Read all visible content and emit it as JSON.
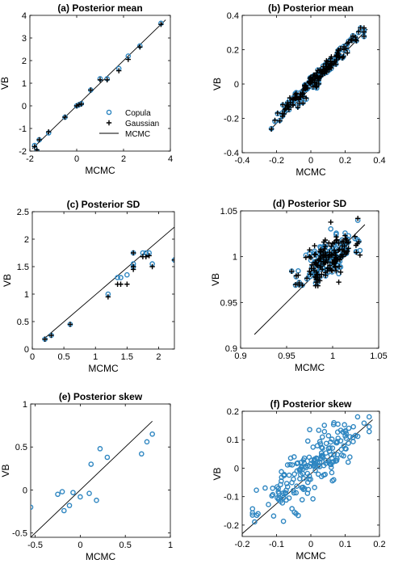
{
  "colors": {
    "copula": "#2e86c1",
    "gaussian": "#000000",
    "line": "#000000",
    "axis": "#000000"
  },
  "legend": {
    "items": [
      "Copula",
      "Gaussian",
      "MCMC"
    ],
    "placement": "inside lower-right of panel (a)"
  },
  "chart_data": [
    {
      "panel": "a",
      "type": "scatter",
      "title": "(a) Posterior mean",
      "xlabel": "MCMC",
      "ylabel": "VB",
      "xlim": [
        -2,
        4
      ],
      "ylim": [
        -2,
        4
      ],
      "xticks": [
        "-2",
        "0",
        "2",
        "4"
      ],
      "yticks": [
        "-2",
        "-1",
        "0",
        "1",
        "2",
        "3",
        "4"
      ],
      "reference_line": {
        "x": [
          -1.9,
          3.8
        ],
        "y": [
          -1.9,
          3.8
        ]
      },
      "series": [
        {
          "name": "Copula",
          "marker": "circle",
          "x": [
            -1.8,
            -1.7,
            -1.6,
            -1.2,
            -0.5,
            0.0,
            0.1,
            0.2,
            0.6,
            1.0,
            1.3,
            1.8,
            2.2,
            2.7,
            3.6
          ],
          "y": [
            -1.75,
            -2.0,
            -1.5,
            -1.2,
            -0.5,
            0.0,
            0.05,
            0.1,
            0.7,
            1.2,
            1.2,
            1.65,
            2.2,
            2.65,
            3.65
          ]
        },
        {
          "name": "Gaussian",
          "marker": "plus",
          "x": [
            -1.8,
            -1.7,
            -1.6,
            -1.2,
            -0.5,
            0.0,
            0.1,
            0.2,
            0.6,
            1.0,
            1.3,
            1.8,
            2.2,
            2.7,
            3.6
          ],
          "y": [
            -1.8,
            -1.95,
            -1.5,
            -1.15,
            -0.5,
            0.0,
            0.05,
            0.08,
            0.7,
            1.15,
            1.15,
            1.55,
            2.05,
            2.6,
            3.6
          ]
        }
      ]
    },
    {
      "panel": "b",
      "type": "scatter",
      "title": "(b) Posterior mean",
      "xlabel": "MCMC",
      "ylabel": "VB",
      "xlim": [
        -0.4,
        0.4
      ],
      "ylim": [
        -0.4,
        0.4
      ],
      "xticks": [
        "-0.4",
        "-0.2",
        "0",
        "0.2",
        "0.4"
      ],
      "yticks": [
        "-0.4",
        "-0.2",
        "0",
        "0.2",
        "0.4"
      ],
      "reference_line": {
        "x": [
          -0.24,
          0.33
        ],
        "y": [
          -0.27,
          0.32
        ]
      },
      "generated": {
        "n": 150,
        "xmin": -0.23,
        "xmax": 0.31,
        "noise": 0.022,
        "slope": 1.0,
        "intercept": 0.0,
        "series": [
          "Copula",
          "Gaussian"
        ],
        "seed": 7
      }
    },
    {
      "panel": "c",
      "type": "scatter",
      "title": "(c) Posterior SD",
      "xlabel": "MCMC",
      "ylabel": "VB",
      "xlim": [
        0,
        2.25
      ],
      "ylim": [
        0,
        2.5
      ],
      "xticks": [
        "0",
        "0.5",
        "1",
        "1.5",
        "2"
      ],
      "yticks": [
        "0",
        "0.5",
        "1",
        "1.5",
        "2",
        "2.5"
      ],
      "reference_line": {
        "x": [
          0.2,
          2.25
        ],
        "y": [
          0.2,
          2.22
        ]
      },
      "series": [
        {
          "name": "Copula",
          "marker": "circle",
          "x": [
            0.2,
            0.3,
            0.6,
            1.2,
            1.35,
            1.4,
            1.5,
            1.6,
            1.6,
            1.6,
            1.75,
            1.8,
            1.85,
            1.9,
            2.25
          ],
          "y": [
            0.18,
            0.25,
            0.45,
            1.0,
            1.3,
            1.3,
            1.35,
            1.5,
            1.55,
            1.75,
            1.75,
            1.75,
            1.75,
            1.55,
            1.62
          ]
        },
        {
          "name": "Gaussian",
          "marker": "plus",
          "x": [
            0.2,
            0.3,
            0.6,
            1.2,
            1.35,
            1.4,
            1.5,
            1.6,
            1.6,
            1.6,
            1.75,
            1.8,
            1.85,
            1.9,
            2.25
          ],
          "y": [
            0.18,
            0.25,
            0.45,
            0.95,
            1.18,
            1.18,
            1.18,
            1.45,
            1.5,
            1.75,
            1.68,
            1.68,
            1.7,
            1.5,
            1.62
          ]
        }
      ]
    },
    {
      "panel": "d",
      "type": "scatter",
      "title": "(d) Posterior SD",
      "xlabel": "MCMC",
      "ylabel": "VB",
      "xlim": [
        0.9,
        1.05
      ],
      "ylim": [
        0.9,
        1.05
      ],
      "xticks": [
        "0.9",
        "0.95",
        "1",
        "1.05"
      ],
      "yticks": [
        "0.9",
        "0.95",
        "1",
        "1.05"
      ],
      "reference_line": {
        "x": [
          0.915,
          1.035
        ],
        "y": [
          0.915,
          1.035
        ]
      },
      "generated": {
        "n": 150,
        "cx": 0.995,
        "cy": 0.998,
        "sx": 0.014,
        "sy": 0.016,
        "series": [
          "Copula",
          "Gaussian"
        ],
        "seed": 11
      }
    },
    {
      "panel": "e",
      "type": "scatter",
      "title": "(e) Posterior skew",
      "xlabel": "MCMC",
      "ylabel": "VB",
      "xlim": [
        -0.55,
        1.0
      ],
      "ylim": [
        -0.55,
        1.0
      ],
      "xticks": [
        "-0.5",
        "0",
        "0.5",
        "1"
      ],
      "yticks": [
        "-0.5",
        "0",
        "0.5",
        "1"
      ],
      "reference_line": {
        "x": [
          -0.55,
          0.8
        ],
        "y": [
          -0.55,
          0.8
        ]
      },
      "series": [
        {
          "name": "Copula",
          "marker": "circle",
          "x": [
            -0.55,
            -0.25,
            -0.2,
            -0.18,
            -0.12,
            -0.08,
            0.0,
            0.1,
            0.12,
            0.18,
            0.22,
            0.3,
            0.68,
            0.74,
            0.8
          ],
          "y": [
            -0.2,
            -0.05,
            -0.02,
            -0.24,
            -0.18,
            -0.03,
            -0.08,
            -0.04,
            0.3,
            -0.12,
            0.48,
            0.38,
            0.42,
            0.56,
            0.65
          ]
        }
      ]
    },
    {
      "panel": "f",
      "type": "scatter",
      "title": "(f) Posterior skew",
      "xlabel": "MCMC",
      "ylabel": "VB",
      "xlim": [
        -0.2,
        0.2
      ],
      "ylim": [
        -0.24,
        0.2
      ],
      "xticks": [
        "-0.2",
        "-0.1",
        "0",
        "0.1",
        "0.2"
      ],
      "yticks": [
        "-0.2",
        "-0.1",
        "0",
        "0.1",
        "0.2"
      ],
      "reference_line": {
        "x": [
          -0.2,
          0.18
        ],
        "y": [
          -0.23,
          0.17
        ]
      },
      "generated": {
        "n": 200,
        "xmin": -0.17,
        "xmax": 0.17,
        "noise": 0.045,
        "slope": 0.9,
        "intercept": 0.0,
        "series": [
          "Copula"
        ],
        "seed": 23
      }
    }
  ]
}
